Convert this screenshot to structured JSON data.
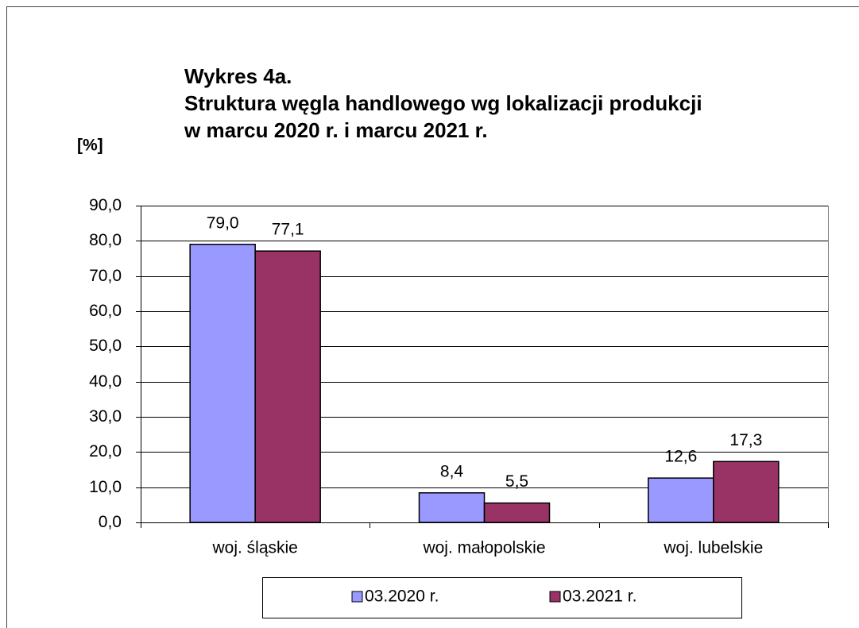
{
  "chart_data": {
    "type": "bar",
    "title": [
      "Wykres 4a.",
      "Struktura węgla handlowego wg lokalizacji produkcji",
      "w marcu 2020 r. i marcu 2021 r."
    ],
    "y_label": "[%]",
    "categories": [
      "woj. śląskie",
      "woj. małopolskie",
      "woj. lubelskie"
    ],
    "series": [
      {
        "name": "03.2020 r.",
        "color": "#9999ff",
        "values": [
          79.0,
          8.4,
          12.6
        ],
        "value_labels": [
          "79,0",
          "8,4",
          "12,6"
        ]
      },
      {
        "name": "03.2021 r.",
        "color": "#993366",
        "values": [
          77.1,
          5.5,
          17.3
        ],
        "value_labels": [
          "77,1",
          "5,5",
          "17,3"
        ]
      }
    ],
    "ylim": [
      0,
      90
    ],
    "yticks": [
      {
        "value": 0,
        "label": "0,0"
      },
      {
        "value": 10,
        "label": "10,0"
      },
      {
        "value": 20,
        "label": "20,0"
      },
      {
        "value": 30,
        "label": "30,0"
      },
      {
        "value": 40,
        "label": "40,0"
      },
      {
        "value": 50,
        "label": "50,0"
      },
      {
        "value": 60,
        "label": "60,0"
      },
      {
        "value": 70,
        "label": "70,0"
      },
      {
        "value": 80,
        "label": "80,0"
      },
      {
        "value": 90,
        "label": "90,0"
      }
    ],
    "grid": true,
    "legend": "bottom"
  }
}
